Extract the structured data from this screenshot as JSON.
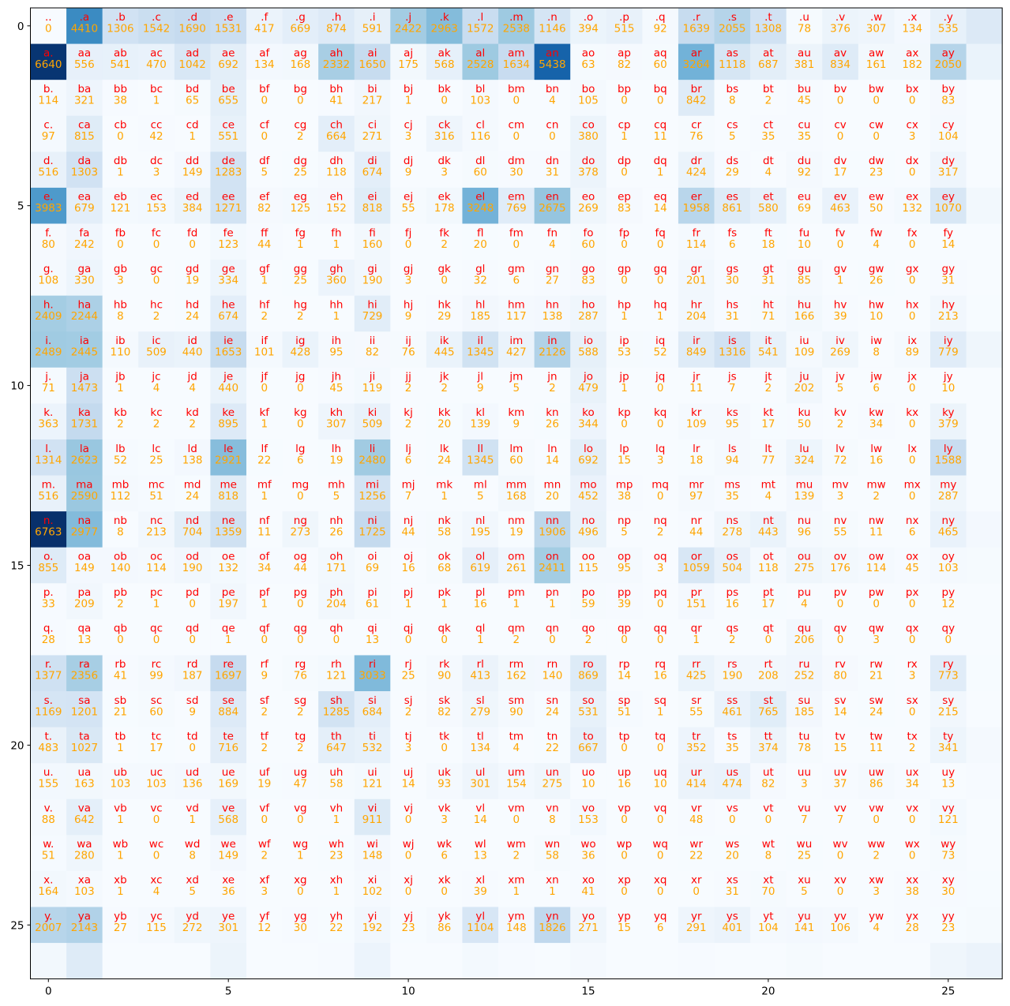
{
  "chart_data": {
    "type": "heatmap",
    "title": "",
    "xlabel": "",
    "ylabel": "",
    "colormap": "Blues",
    "grid": false,
    "n_rows": 27,
    "n_cols": 27,
    "xlim": [
      -0.5,
      26.5
    ],
    "ylim": [
      26.5,
      -0.5
    ],
    "x_ticks": [
      0,
      5,
      10,
      15,
      20,
      25
    ],
    "y_ticks": [
      0,
      5,
      10,
      15,
      20,
      25
    ],
    "alphabet": ".abcdefghijklmnopqrstuvwxyz",
    "label_colors": {
      "bigram": "#ff0000",
      "count": "#ffa500"
    },
    "color_max": 6763,
    "counts": [
      [
        0,
        4410,
        1306,
        1542,
        1690,
        1531,
        417,
        669,
        874,
        591,
        2422,
        2963,
        1572,
        2538,
        1146,
        394,
        515,
        92,
        1639,
        2055,
        1308,
        78,
        376,
        307,
        134,
        535,
        929
      ],
      [
        6640,
        556,
        541,
        470,
        1042,
        692,
        134,
        168,
        2332,
        1650,
        175,
        568,
        2528,
        1634,
        5438,
        63,
        82,
        60,
        3264,
        1118,
        687,
        381,
        834,
        161,
        182,
        2050,
        435
      ],
      [
        114,
        321,
        38,
        1,
        65,
        655,
        0,
        0,
        41,
        217,
        1,
        0,
        103,
        0,
        4,
        105,
        0,
        0,
        842,
        8,
        2,
        45,
        0,
        0,
        0,
        83,
        0
      ],
      [
        97,
        815,
        0,
        42,
        1,
        551,
        0,
        2,
        664,
        271,
        3,
        316,
        116,
        0,
        0,
        380,
        1,
        11,
        76,
        5,
        35,
        35,
        0,
        0,
        3,
        104,
        4
      ],
      [
        516,
        1303,
        1,
        3,
        149,
        1283,
        5,
        25,
        118,
        674,
        9,
        3,
        60,
        30,
        31,
        378,
        0,
        1,
        424,
        29,
        4,
        92,
        17,
        23,
        0,
        317,
        1
      ],
      [
        3983,
        679,
        121,
        153,
        384,
        1271,
        82,
        125,
        152,
        818,
        55,
        178,
        3248,
        769,
        2675,
        269,
        83,
        14,
        1958,
        861,
        580,
        69,
        463,
        50,
        132,
        1070,
        181
      ],
      [
        80,
        242,
        0,
        0,
        0,
        123,
        44,
        1,
        1,
        160,
        0,
        2,
        20,
        0,
        4,
        60,
        0,
        0,
        114,
        6,
        18,
        10,
        0,
        4,
        0,
        14,
        2
      ],
      [
        108,
        330,
        3,
        0,
        19,
        334,
        1,
        25,
        360,
        190,
        3,
        0,
        32,
        6,
        27,
        83,
        0,
        0,
        201,
        30,
        31,
        85,
        1,
        26,
        0,
        31,
        1
      ],
      [
        2409,
        2244,
        8,
        2,
        24,
        674,
        2,
        2,
        1,
        729,
        9,
        29,
        185,
        117,
        138,
        287,
        1,
        1,
        204,
        31,
        71,
        166,
        39,
        10,
        0,
        213,
        20
      ],
      [
        2489,
        2445,
        110,
        509,
        440,
        1653,
        101,
        428,
        95,
        82,
        76,
        445,
        1345,
        427,
        2126,
        588,
        53,
        52,
        849,
        1316,
        541,
        109,
        269,
        8,
        89,
        779,
        277
      ],
      [
        71,
        1473,
        1,
        4,
        4,
        440,
        0,
        0,
        45,
        119,
        2,
        2,
        9,
        5,
        2,
        479,
        1,
        0,
        11,
        7,
        2,
        202,
        5,
        6,
        0,
        10,
        0
      ],
      [
        363,
        1731,
        2,
        2,
        2,
        895,
        1,
        0,
        307,
        509,
        2,
        20,
        139,
        9,
        26,
        344,
        0,
        0,
        109,
        95,
        17,
        50,
        2,
        34,
        0,
        379,
        2
      ],
      [
        1314,
        2623,
        52,
        25,
        138,
        2921,
        22,
        6,
        19,
        2480,
        6,
        24,
        1345,
        60,
        14,
        692,
        15,
        3,
        18,
        94,
        77,
        324,
        72,
        16,
        0,
        1588,
        10
      ],
      [
        516,
        2590,
        112,
        51,
        24,
        818,
        1,
        0,
        5,
        1256,
        7,
        1,
        5,
        168,
        20,
        452,
        38,
        0,
        97,
        35,
        4,
        139,
        3,
        2,
        0,
        287,
        11
      ],
      [
        6763,
        2977,
        8,
        213,
        704,
        1359,
        11,
        273,
        26,
        1725,
        44,
        58,
        195,
        19,
        1906,
        496,
        5,
        2,
        44,
        278,
        443,
        96,
        55,
        11,
        6,
        465,
        145
      ],
      [
        855,
        149,
        140,
        114,
        190,
        132,
        34,
        44,
        171,
        69,
        16,
        68,
        619,
        261,
        2411,
        115,
        95,
        3,
        1059,
        504,
        118,
        275,
        176,
        114,
        45,
        103,
        54
      ],
      [
        33,
        209,
        2,
        1,
        0,
        197,
        1,
        0,
        204,
        61,
        1,
        1,
        16,
        1,
        1,
        59,
        39,
        0,
        151,
        16,
        17,
        4,
        0,
        0,
        0,
        12,
        0
      ],
      [
        28,
        13,
        0,
        0,
        0,
        1,
        0,
        0,
        0,
        13,
        0,
        0,
        1,
        2,
        0,
        2,
        0,
        0,
        1,
        2,
        0,
        206,
        0,
        3,
        0,
        0,
        0
      ],
      [
        1377,
        2356,
        41,
        99,
        187,
        1697,
        9,
        76,
        121,
        3033,
        25,
        90,
        413,
        162,
        140,
        869,
        14,
        16,
        425,
        190,
        208,
        252,
        80,
        21,
        3,
        773,
        23
      ],
      [
        1169,
        1201,
        21,
        60,
        9,
        884,
        2,
        2,
        1285,
        684,
        2,
        82,
        279,
        90,
        24,
        531,
        51,
        1,
        55,
        461,
        765,
        185,
        14,
        24,
        0,
        215,
        10
      ],
      [
        483,
        1027,
        1,
        17,
        0,
        716,
        2,
        2,
        647,
        532,
        3,
        0,
        134,
        4,
        22,
        667,
        0,
        0,
        352,
        35,
        374,
        78,
        15,
        11,
        2,
        341,
        105
      ],
      [
        155,
        163,
        103,
        103,
        136,
        169,
        19,
        47,
        58,
        121,
        14,
        93,
        301,
        154,
        275,
        10,
        16,
        10,
        414,
        474,
        82,
        3,
        37,
        86,
        34,
        13,
        45
      ],
      [
        88,
        642,
        1,
        0,
        1,
        568,
        0,
        0,
        1,
        911,
        0,
        3,
        14,
        0,
        8,
        153,
        0,
        0,
        48,
        0,
        0,
        7,
        7,
        0,
        0,
        121,
        0
      ],
      [
        51,
        280,
        1,
        0,
        8,
        149,
        2,
        1,
        23,
        148,
        0,
        6,
        13,
        2,
        58,
        36,
        0,
        0,
        22,
        20,
        8,
        25,
        0,
        2,
        0,
        73,
        1
      ],
      [
        164,
        103,
        1,
        4,
        5,
        36,
        3,
        0,
        1,
        102,
        0,
        0,
        39,
        1,
        1,
        41,
        0,
        0,
        0,
        31,
        70,
        5,
        0,
        3,
        38,
        30,
        19
      ],
      [
        2007,
        2143,
        27,
        115,
        272,
        301,
        12,
        30,
        22,
        192,
        23,
        86,
        1104,
        148,
        1826,
        271,
        15,
        6,
        291,
        401,
        104,
        141,
        106,
        4,
        28,
        23,
        78
      ],
      [
        160,
        860,
        4,
        2,
        2,
        373,
        0,
        1,
        43,
        364,
        2,
        2,
        123,
        35,
        4,
        110,
        2,
        0,
        32,
        4,
        4,
        73,
        2,
        3,
        1,
        276,
        418
      ]
    ],
    "labeled_rows": 26,
    "labeled_cols": 26
  }
}
